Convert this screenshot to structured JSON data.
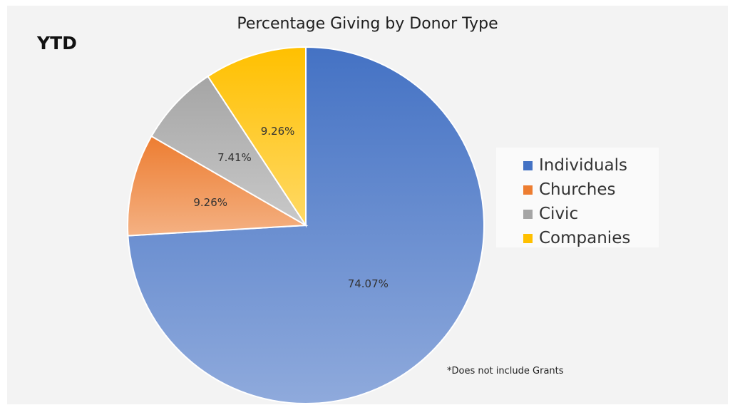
{
  "corner_label": "YTD",
  "footnote": "*Does not include Grants",
  "chart_data": {
    "type": "pie",
    "title": "Percentage Giving by Donor Type",
    "legend_position": "right",
    "slices": [
      {
        "label": "Individuals",
        "value": 74.07,
        "display": "74.07%",
        "color_top": "#4472c4",
        "color_bottom": "#8faadc"
      },
      {
        "label": "Churches",
        "value": 9.26,
        "display": "9.26%",
        "color_top": "#ed7d31",
        "color_bottom": "#f4b183"
      },
      {
        "label": "Civic",
        "value": 7.41,
        "display": "7.41%",
        "color_top": "#a5a5a5",
        "color_bottom": "#c9c9c9"
      },
      {
        "label": "Companies",
        "value": 9.26,
        "display": "9.26%",
        "color_top": "#ffc000",
        "color_bottom": "#ffd966"
      }
    ]
  }
}
